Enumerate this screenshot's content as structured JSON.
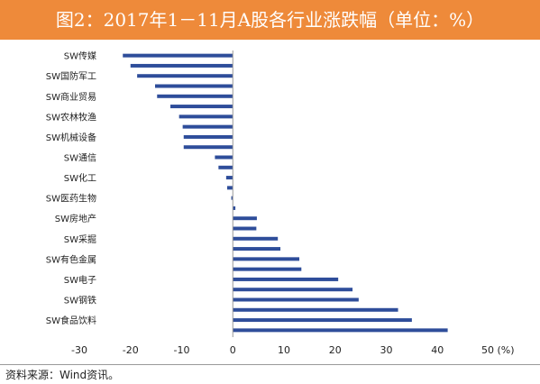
{
  "title": "图2：2017年1－11月A股各行业涨跌幅（单位：%）",
  "source": "资料来源：Wind资讯。",
  "colors": {
    "title_bg": "#ee8a3a",
    "bar": "#2e4d9a",
    "axis": "#999999"
  },
  "chart_data": {
    "type": "bar",
    "orientation": "horizontal",
    "title": "图2：2017年1－11月A股各行业涨跌幅（单位：%）",
    "xlabel": "",
    "ylabel": "",
    "xlim": [
      -30,
      50
    ],
    "x_ticks": [
      "-30",
      "-20",
      "-10",
      "0",
      "10",
      "20",
      "30",
      "40",
      "50 (%)"
    ],
    "x_tick_values": [
      -30,
      -20,
      -10,
      0,
      10,
      20,
      30,
      40,
      50
    ],
    "grid": false,
    "category_labels": [
      "SW传媒",
      "SW国防军工",
      "SW商业贸易",
      "SW农林牧渔",
      "SW机械设备",
      "SW通信",
      "SW化工",
      "SW医药生物",
      "SW房地产",
      "SW采掘",
      "SW有色金属",
      "SW电子",
      "SW钢铁",
      "SW食品饮料"
    ],
    "values": [
      -21.5,
      -20.0,
      -18.7,
      -15.2,
      -14.8,
      -12.2,
      -10.5,
      -9.8,
      -9.6,
      -9.6,
      -3.5,
      -2.8,
      -1.3,
      -1.1,
      -0.3,
      0.5,
      4.7,
      4.6,
      8.8,
      9.3,
      13.0,
      13.4,
      20.6,
      23.4,
      24.6,
      32.3,
      35.0,
      42.0
    ],
    "label_every": 2
  }
}
